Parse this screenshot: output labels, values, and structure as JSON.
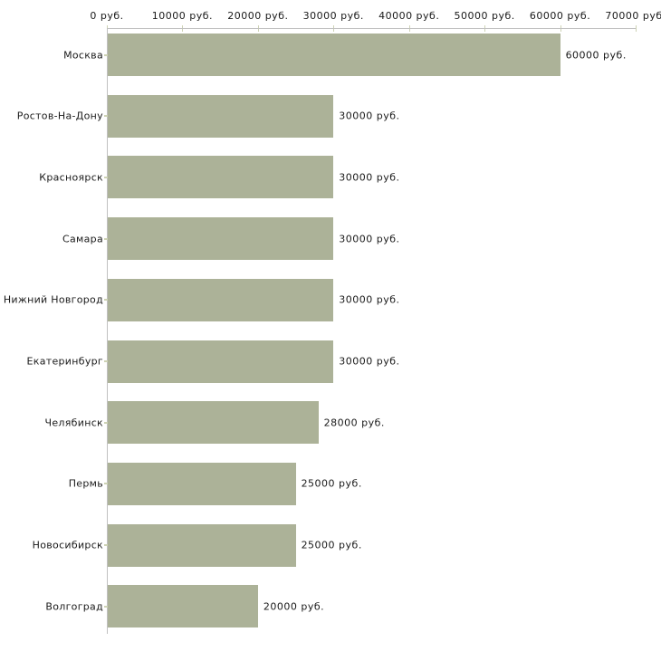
{
  "chart_data": {
    "type": "bar",
    "orientation": "horizontal",
    "categories": [
      "Москва",
      "Ростов-На-Дону",
      "Красноярск",
      "Самара",
      "Нижний Новгород",
      "Екатеринбург",
      "Челябинск",
      "Пермь",
      "Новосибирск",
      "Волгоград"
    ],
    "values": [
      60000,
      30000,
      30000,
      30000,
      30000,
      30000,
      28000,
      25000,
      25000,
      20000
    ],
    "value_labels": [
      "60000 руб.",
      "30000 руб.",
      "30000 руб.",
      "30000 руб.",
      "30000 руб.",
      "30000 руб.",
      "28000 руб.",
      "25000 руб.",
      "25000 руб.",
      "20000 руб."
    ],
    "x_axis": {
      "min": 0,
      "max": 70000,
      "tick_values": [
        0,
        10000,
        20000,
        30000,
        40000,
        50000,
        60000,
        70000
      ],
      "tick_labels": [
        "0 руб.",
        "10000 руб.",
        "20000 руб.",
        "30000 руб.",
        "40000 руб.",
        "50000 руб.",
        "60000 руб.",
        "70000 руб."
      ],
      "unit": "руб."
    },
    "title": "",
    "xlabel": "",
    "ylabel": "",
    "grid": false,
    "legend": false,
    "colors": {
      "bar": "#acb298",
      "axis": "#c0c0c0",
      "tick": "#cdd2b4",
      "text": "#1a1a1a",
      "background": "#ffffff"
    }
  }
}
